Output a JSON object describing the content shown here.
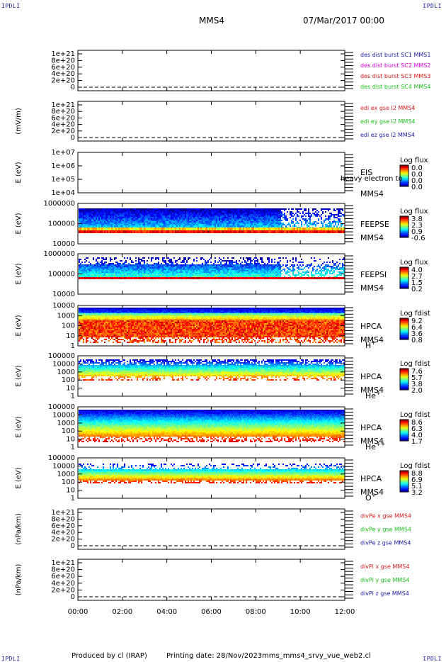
{
  "header": {
    "corner_label": "IPDLI",
    "spacecraft": "MMS4",
    "date_time": "07/Mar/2017 00:00"
  },
  "footer": {
    "produced_by": "Produced by cl (IRAP)",
    "printing_date": "Printing date: 28/Nov/2023",
    "script_name": "mms_mms4_srvy_vue_web2.cl"
  },
  "colors": {
    "blue": "#1a1aa8",
    "magenta": "#e000e0",
    "red": "#d81818",
    "green": "#18c018"
  },
  "chart_data": {
    "type": "heatmap",
    "x_ticks": [
      "00:00",
      "02:00",
      "04:00",
      "06:00",
      "08:00",
      "10:00",
      "12:00"
    ],
    "xlim": [
      "00:00",
      "12:00"
    ],
    "panels": [
      {
        "kind": "line",
        "ylabel": "",
        "y_ticks": [
          "1e+21",
          "8e+20",
          "6e+20",
          "4e+20",
          "2e+20",
          "0"
        ],
        "legend": [
          {
            "text": "des dist burst SC1 MMS1",
            "color": "blue"
          },
          {
            "text": "des dist burst SC2 MMS2",
            "color": "magenta"
          },
          {
            "text": "des dist burst SC3 MMS3",
            "color": "red"
          },
          {
            "text": "des dist burst SC4 MMS4",
            "color": "green"
          }
        ]
      },
      {
        "kind": "line",
        "ylabel": "(mV/m)",
        "y_ticks": [
          "1e+21",
          "8e+20",
          "6e+20",
          "4e+20",
          "2e+20",
          "0"
        ],
        "legend": [
          {
            "text": "edi ex gse l2 MMS4",
            "color": "red"
          },
          {
            "text": "edi ey gse l2 MMS4",
            "color": "green"
          },
          {
            "text": "edi ez gse l2 MMS4",
            "color": "blue"
          }
        ]
      },
      {
        "kind": "spec",
        "ylabel": "E (eV)",
        "y_ticks": [
          "1e+07",
          "1e+06",
          "1e+05",
          "1e+04"
        ],
        "empty": true,
        "inst_labels": [
          "EIS",
          "heavy electron to",
          "MMS4"
        ],
        "species": "",
        "cbar_title": "Log flux",
        "cbar_ticks": [
          "0.0",
          "0.0",
          "0.0",
          "0.0"
        ],
        "profile": {
          "bands": []
        }
      },
      {
        "kind": "spec",
        "ylabel": "E (eV)",
        "y_ticks": [
          "1000000",
          "100000",
          "10000"
        ],
        "inst_labels": [
          "FEEPSE",
          "MMS4"
        ],
        "species": "",
        "cbar_title": "Log flux",
        "cbar_ticks": [
          "3.8",
          "2.3",
          "0.9",
          "-0.6"
        ]
      },
      {
        "kind": "spec",
        "ylabel": "E (eV)",
        "y_ticks": [
          "1000000",
          "100000",
          "10000"
        ],
        "inst_labels": [
          "FEEPSI",
          "MMS4"
        ],
        "species": "",
        "cbar_title": "Log flux",
        "cbar_ticks": [
          "4.0",
          "2.7",
          "1.5",
          "0.2"
        ]
      },
      {
        "kind": "spec",
        "ylabel": "E (eV)",
        "y_ticks": [
          "10000",
          "1000",
          "100",
          "10",
          "1"
        ],
        "inst_labels": [
          "HPCA",
          "MMS4"
        ],
        "species": "H+",
        "cbar_title": "Log fdist",
        "cbar_ticks": [
          "9.2",
          "6.4",
          "3.6",
          "0.8"
        ]
      },
      {
        "kind": "spec",
        "ylabel": "E (eV)",
        "y_ticks": [
          "100000",
          "10000",
          "1000",
          "100",
          "10",
          "1"
        ],
        "inst_labels": [
          "HPCA",
          "MMS4"
        ],
        "species": "He+",
        "cbar_title": "Log fdist",
        "cbar_ticks": [
          "7.6",
          "5.7",
          "3.8",
          "2.0"
        ]
      },
      {
        "kind": "spec",
        "ylabel": "E (eV)",
        "y_ticks": [
          "100000",
          "10000",
          "1000",
          "100",
          "10",
          "1"
        ],
        "inst_labels": [
          "HPCA",
          "MMS4"
        ],
        "species": "He++",
        "cbar_title": "Log fdist",
        "cbar_ticks": [
          "8.6",
          "6.3",
          "4.0",
          "1.7"
        ]
      },
      {
        "kind": "spec",
        "ylabel": "E (eV)",
        "y_ticks": [
          "100000",
          "10000",
          "1000",
          "100",
          "10",
          "1"
        ],
        "inst_labels": [
          "HPCA",
          "MMS4"
        ],
        "species": "O+",
        "cbar_title": "Log fdist",
        "cbar_ticks": [
          "8.8",
          "6.9",
          "5.1",
          "3.2"
        ]
      },
      {
        "kind": "line",
        "ylabel": "(nPa/km)",
        "y_ticks": [
          "1e+21",
          "8e+20",
          "6e+20",
          "4e+20",
          "2e+20",
          "0"
        ],
        "legend": [
          {
            "text": "divPe x gse MMS4",
            "color": "red"
          },
          {
            "text": "divPe y gse MMS4",
            "color": "green"
          },
          {
            "text": "divPe z gse MMS4",
            "color": "blue"
          }
        ]
      },
      {
        "kind": "line",
        "ylabel": "(nPa/km)",
        "y_ticks": [
          "1e+21",
          "8e+20",
          "6e+20",
          "4e+20",
          "2e+20",
          "0"
        ],
        "legend": [
          {
            "text": "divPi x gse MMS4",
            "color": "red"
          },
          {
            "text": "divPi y gse MMS4",
            "color": "green"
          },
          {
            "text": "divPi z gse MMS4",
            "color": "blue"
          }
        ]
      }
    ]
  }
}
